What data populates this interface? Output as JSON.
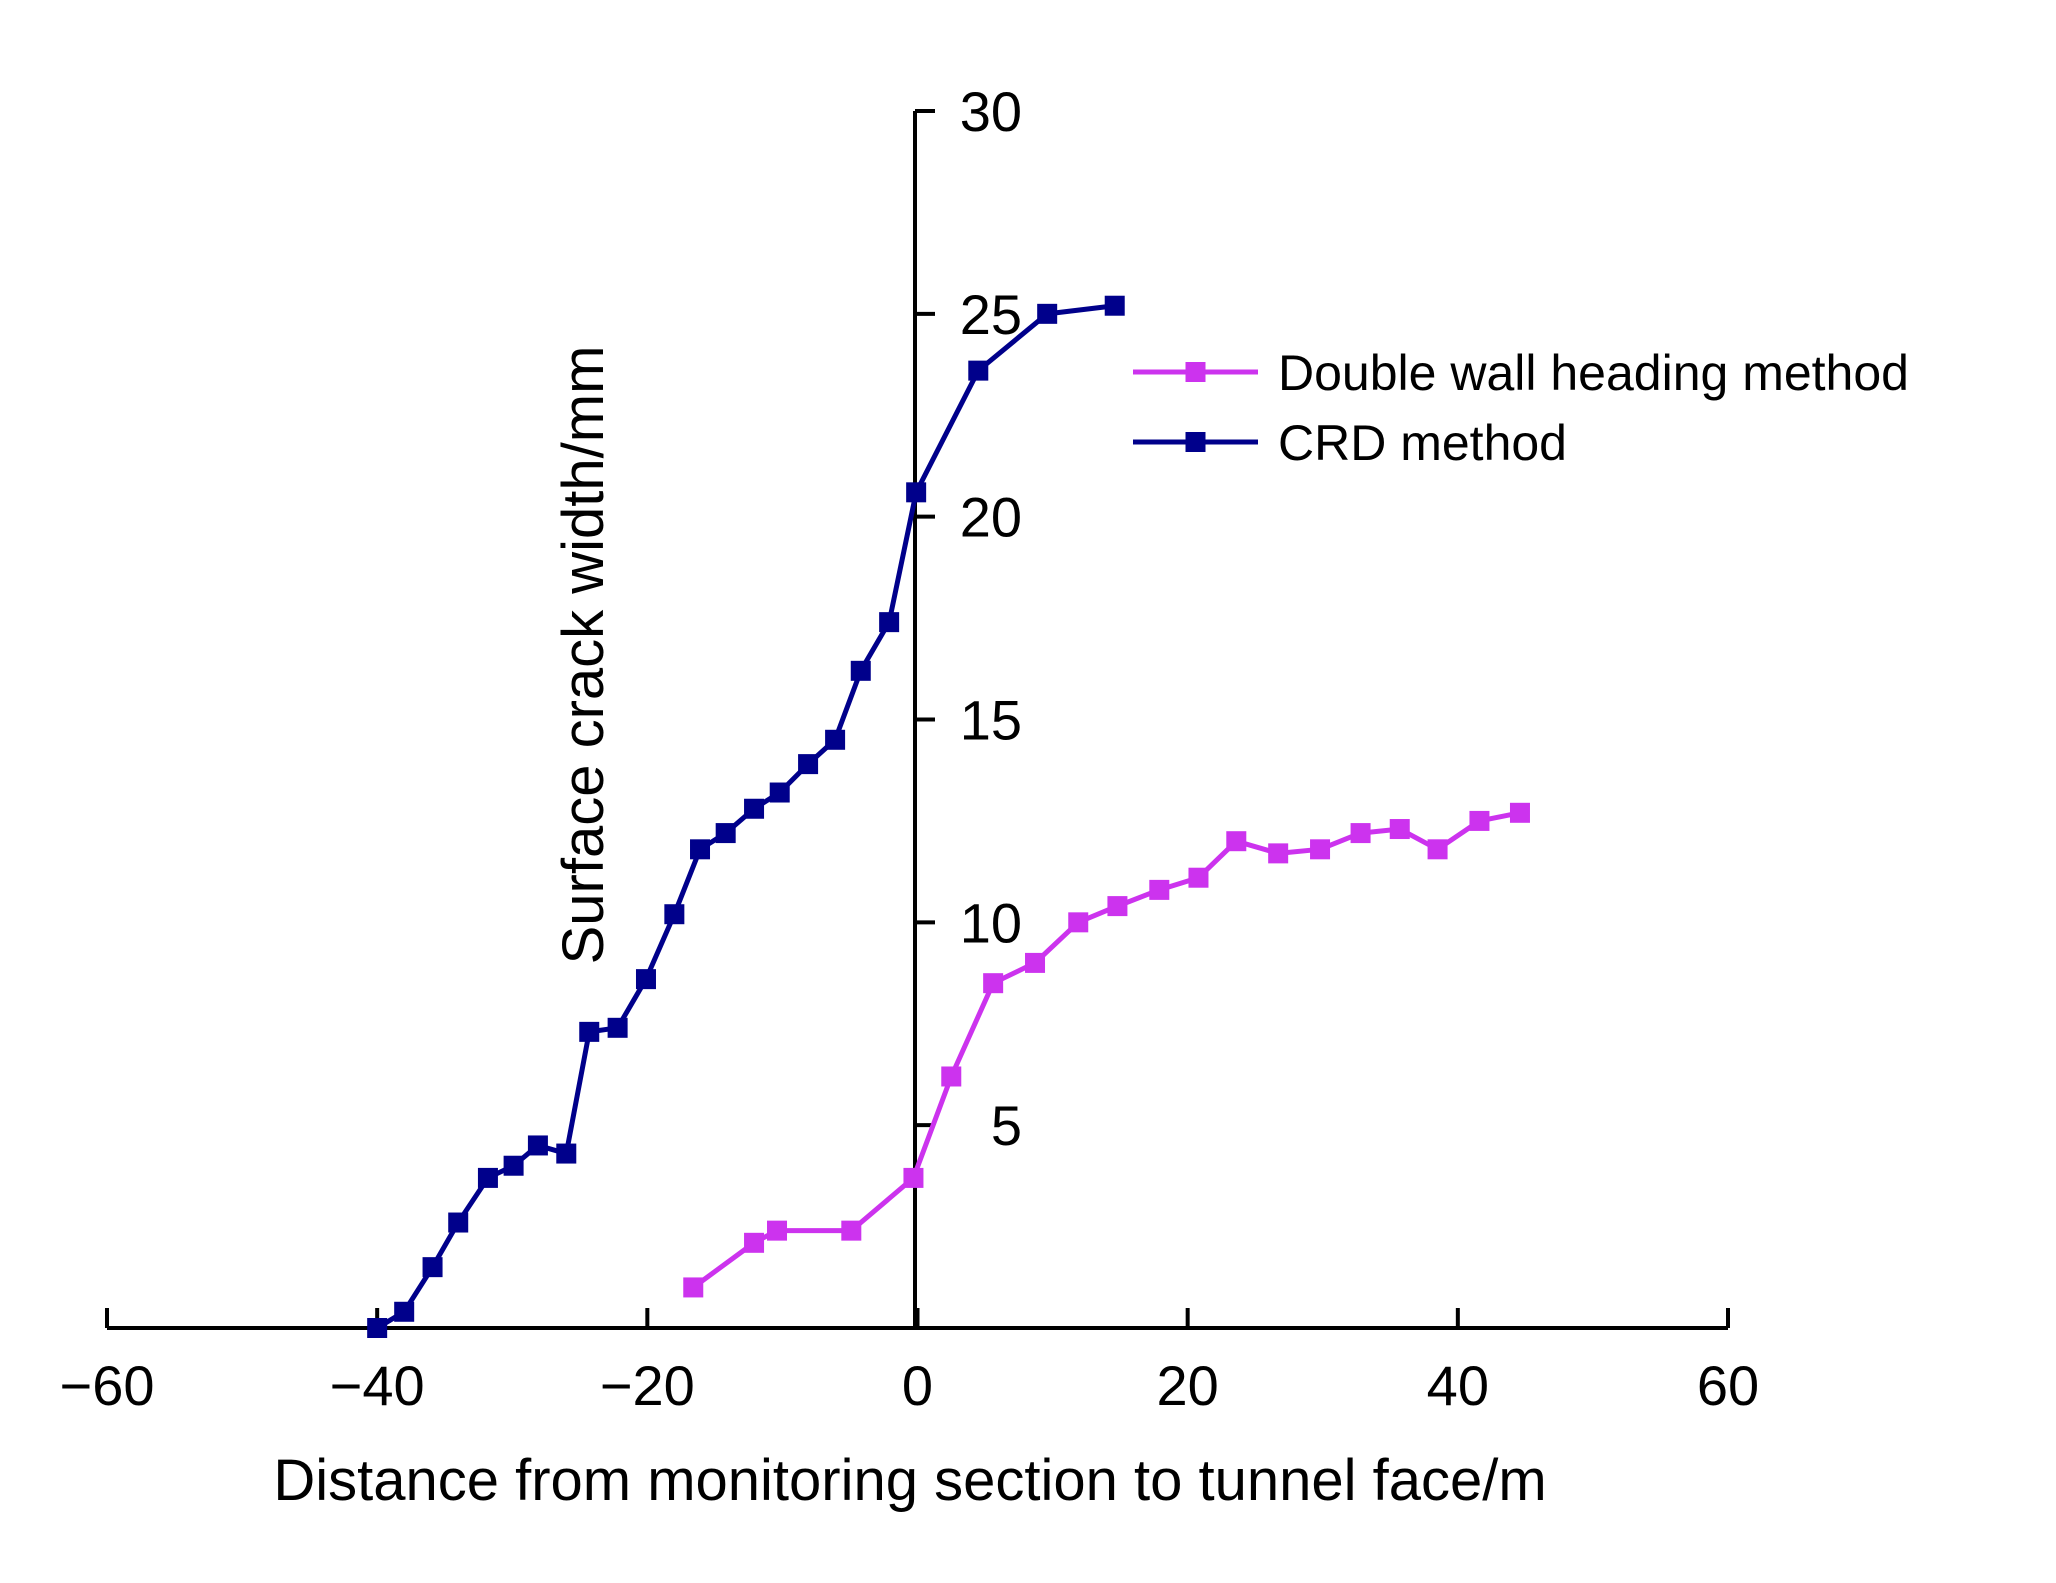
{
  "chart_data": {
    "type": "line",
    "title": "",
    "xlabel": "Distance from monitoring section to tunnel face/m",
    "ylabel": "Surface crack width/mm",
    "xlim": [
      -60,
      60
    ],
    "ylim": [
      0,
      30
    ],
    "x_ticks": [
      -60,
      -40,
      -20,
      0,
      20,
      40,
      60
    ],
    "x_tick_labels": [
      "−60",
      "−40",
      "−20",
      "0",
      "20",
      "40",
      "60"
    ],
    "y_ticks": [
      5,
      10,
      15,
      20,
      25,
      30
    ],
    "y_tick_labels": [
      "5",
      "10",
      "15",
      "20",
      "25",
      "30"
    ],
    "grid": false,
    "legend_position": "upper-right",
    "series": [
      {
        "name": "Double wall heading method",
        "color": "#cc33ee",
        "marker": "square",
        "points": [
          [
            -16.6,
            1.0
          ],
          [
            -12.1,
            2.1
          ],
          [
            -10.4,
            2.4
          ],
          [
            -4.9,
            2.4
          ],
          [
            -0.3,
            3.7
          ],
          [
            2.5,
            6.2
          ],
          [
            5.6,
            8.5
          ],
          [
            8.7,
            9.0
          ],
          [
            11.9,
            10.0
          ],
          [
            14.8,
            10.4
          ],
          [
            17.9,
            10.8
          ],
          [
            20.8,
            11.1
          ],
          [
            23.6,
            12.0
          ],
          [
            26.7,
            11.7
          ],
          [
            29.8,
            11.8
          ],
          [
            32.8,
            12.2
          ],
          [
            35.7,
            12.3
          ],
          [
            38.5,
            11.8
          ],
          [
            41.6,
            12.5
          ],
          [
            44.6,
            12.7
          ]
        ]
      },
      {
        "name": "CRD method",
        "color": "#00008b",
        "marker": "square",
        "points": [
          [
            -40.0,
            0.0
          ],
          [
            -38.0,
            0.4
          ],
          [
            -35.9,
            1.5
          ],
          [
            -34.0,
            2.6
          ],
          [
            -31.8,
            3.7
          ],
          [
            -29.9,
            4.0
          ],
          [
            -28.1,
            4.5
          ],
          [
            -26.0,
            4.3
          ],
          [
            -24.3,
            7.3
          ],
          [
            -22.2,
            7.4
          ],
          [
            -20.1,
            8.6
          ],
          [
            -18.0,
            10.2
          ],
          [
            -16.1,
            11.8
          ],
          [
            -14.2,
            12.2
          ],
          [
            -12.1,
            12.8
          ],
          [
            -10.2,
            13.2
          ],
          [
            -8.1,
            13.9
          ],
          [
            -6.1,
            14.5
          ],
          [
            -4.2,
            16.2
          ],
          [
            -2.1,
            17.4
          ],
          [
            -0.1,
            20.6
          ],
          [
            4.5,
            23.6
          ],
          [
            9.6,
            25.0
          ],
          [
            14.6,
            25.2
          ]
        ]
      }
    ]
  }
}
